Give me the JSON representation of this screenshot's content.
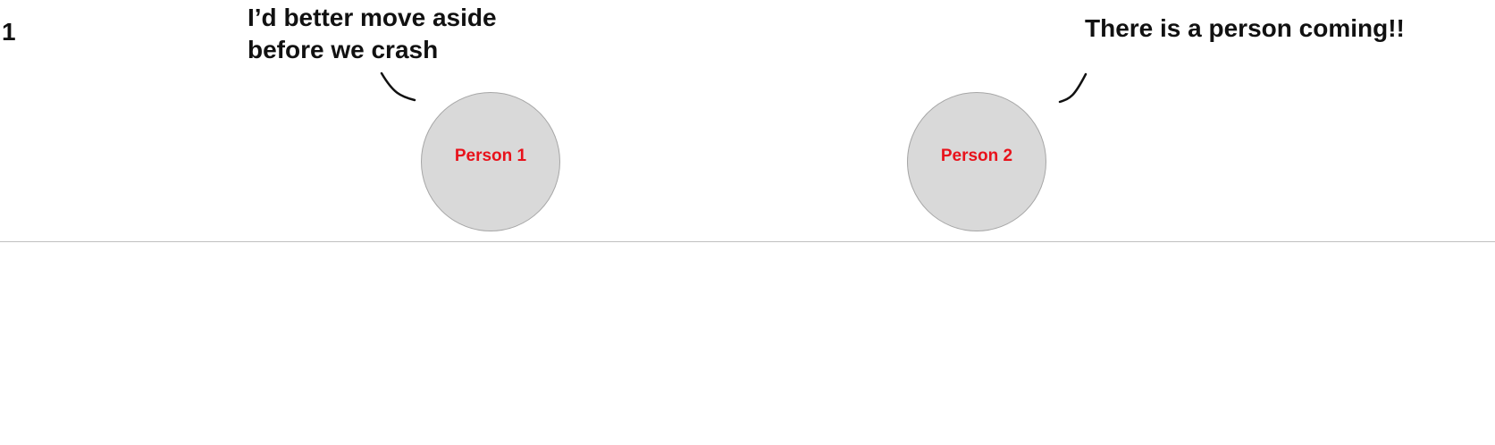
{
  "panel": {
    "number": "1"
  },
  "speech_bubbles": [
    {
      "lines": [
        "I’d better move aside",
        "before we crash"
      ]
    },
    {
      "lines": [
        "There is a person coming!!"
      ]
    }
  ],
  "people": [
    {
      "label": "Person 1"
    },
    {
      "label": "Person 2"
    }
  ],
  "colors": {
    "person_fill": "#d9d9d9",
    "person_label": "#e8121b",
    "ground_line": "#bfbfbf"
  }
}
